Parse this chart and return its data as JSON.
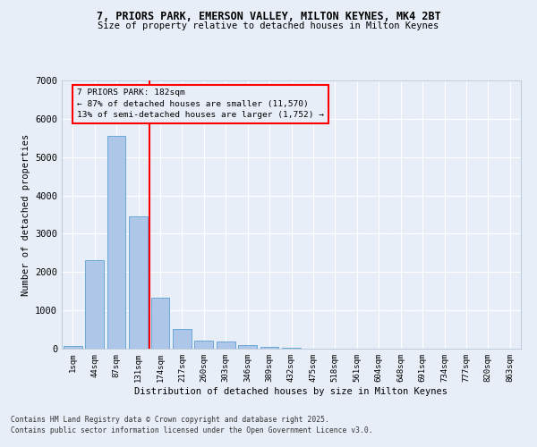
{
  "title_line1": "7, PRIORS PARK, EMERSON VALLEY, MILTON KEYNES, MK4 2BT",
  "title_line2": "Size of property relative to detached houses in Milton Keynes",
  "xlabel": "Distribution of detached houses by size in Milton Keynes",
  "ylabel": "Number of detached properties",
  "categories": [
    "1sqm",
    "44sqm",
    "87sqm",
    "131sqm",
    "174sqm",
    "217sqm",
    "260sqm",
    "303sqm",
    "346sqm",
    "389sqm",
    "432sqm",
    "475sqm",
    "518sqm",
    "561sqm",
    "604sqm",
    "648sqm",
    "691sqm",
    "734sqm",
    "777sqm",
    "820sqm",
    "863sqm"
  ],
  "bar_heights": [
    75,
    2300,
    5550,
    3450,
    1320,
    520,
    210,
    180,
    90,
    50,
    30,
    0,
    0,
    0,
    0,
    0,
    0,
    0,
    0,
    0,
    0
  ],
  "bar_color": "#aec6e8",
  "bar_edge_color": "#5a9fd4",
  "vline_color": "red",
  "vline_pos": 3.5,
  "ylim": [
    0,
    7000
  ],
  "yticks": [
    0,
    1000,
    2000,
    3000,
    4000,
    5000,
    6000,
    7000
  ],
  "annotation_line1": "7 PRIORS PARK: 182sqm",
  "annotation_line2": "← 87% of detached houses are smaller (11,570)",
  "annotation_line3": "13% of semi-detached houses are larger (1,752) →",
  "bg_color": "#e8eef8",
  "grid_color": "#ffffff",
  "footer_line1": "Contains HM Land Registry data © Crown copyright and database right 2025.",
  "footer_line2": "Contains public sector information licensed under the Open Government Licence v3.0."
}
